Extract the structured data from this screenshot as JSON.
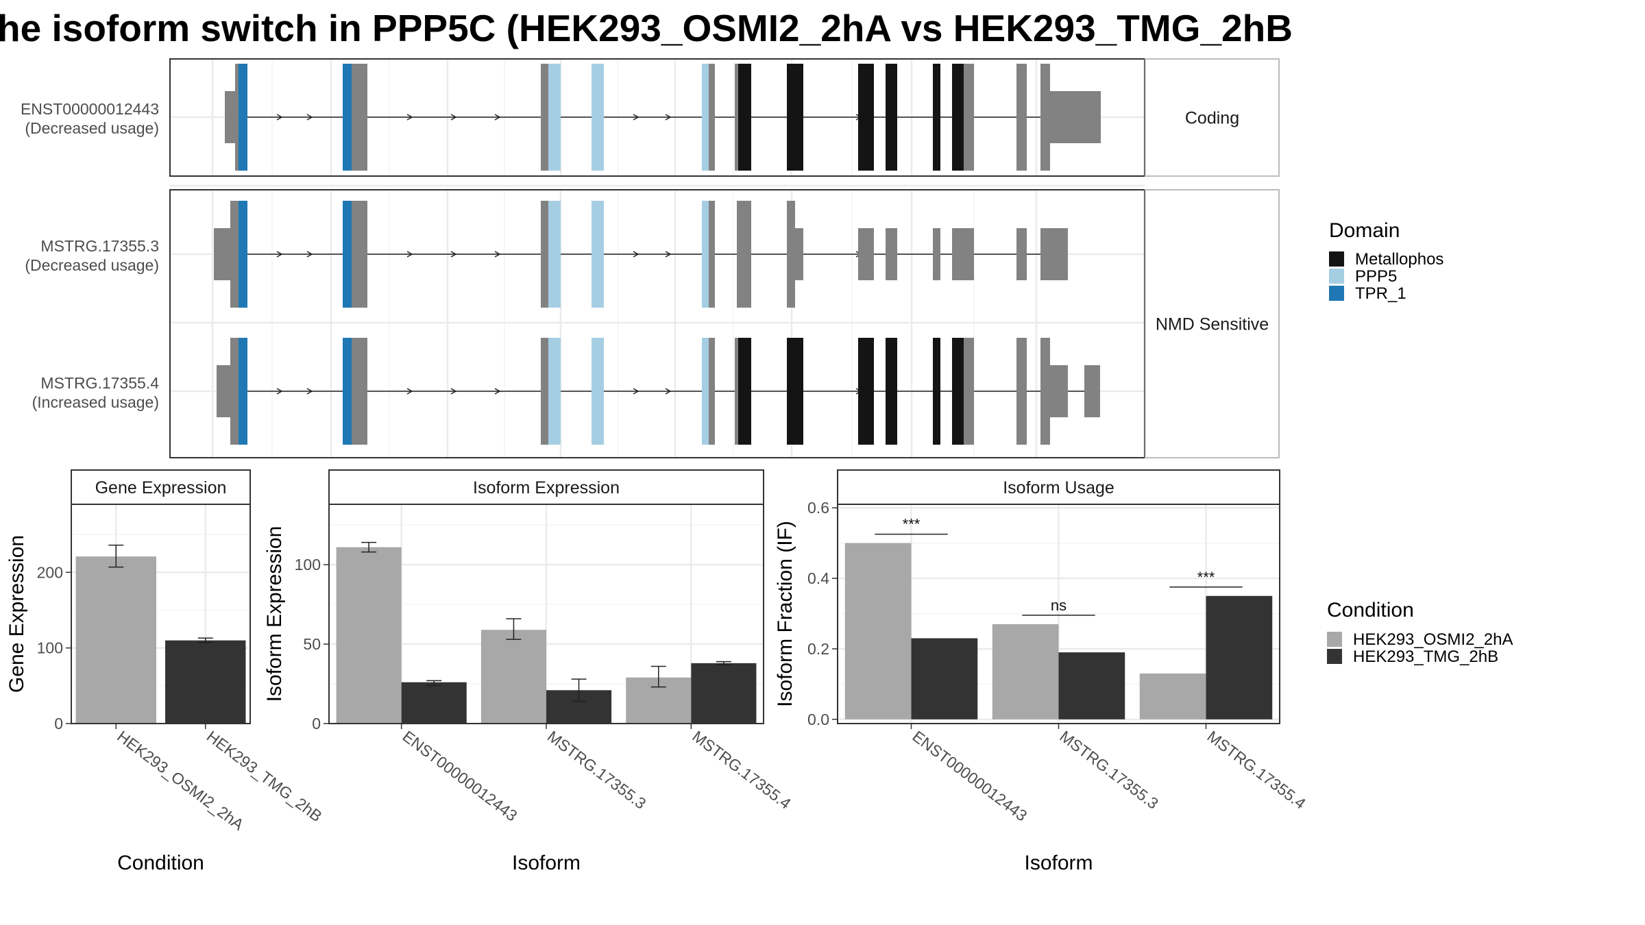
{
  "title": "he isoform switch in PPP5C (HEK293_OSMI2_2hA vs HEK293_TMG_2hB",
  "structure": {
    "isoforms": [
      {
        "id": "ENST00000012443",
        "usage": "(Decreased usage)",
        "panel": 0
      },
      {
        "id": "MSTRG.17355.3",
        "usage": "(Decreased usage)",
        "panel": 1
      },
      {
        "id": "MSTRG.17355.4",
        "usage": "(Increased usage)",
        "panel": 1
      }
    ],
    "panel_labels": [
      "Coding",
      "NMD Sensitive"
    ],
    "domain_legend": {
      "title": "Domain",
      "items": [
        {
          "label": "Metallophos",
          "color": "#141414"
        },
        {
          "label": "PPP5",
          "color": "#a6cee3"
        },
        {
          "label": "TPR_1",
          "color": "#1f78b4"
        }
      ]
    }
  },
  "condition_legend": {
    "title": "Condition",
    "items": [
      {
        "label": "HEK293_OSMI2_2hA",
        "color": "#a8a8a8"
      },
      {
        "label": "HEK293_TMG_2hB",
        "color": "#333333"
      }
    ]
  },
  "chart_data": [
    {
      "type": "bar",
      "title": "Gene Expression",
      "xlabel": "Condition",
      "ylabel": "Gene Expression",
      "categories": [
        "HEK293_OSMI2_2hA",
        "HEK293_TMG_2hB"
      ],
      "values": [
        221,
        110
      ],
      "error_low": [
        207,
        107
      ],
      "error_high": [
        236,
        113
      ],
      "ylim": [
        0,
        290
      ],
      "yticks": [
        0,
        100,
        200
      ],
      "grid": true
    },
    {
      "type": "bar",
      "title": "Isoform Expression",
      "xlabel": "Isoform",
      "ylabel": "Isoform Expression",
      "categories": [
        "ENST00000012443",
        "MSTRG.17355.3",
        "MSTRG.17355.4"
      ],
      "series": [
        {
          "name": "HEK293_OSMI2_2hA",
          "values": [
            111,
            59,
            29
          ],
          "error_low": [
            108,
            53,
            23
          ],
          "error_high": [
            114,
            66,
            36
          ]
        },
        {
          "name": "HEK293_TMG_2hB",
          "values": [
            26,
            21,
            38
          ],
          "error_low": [
            24,
            14,
            37
          ],
          "error_high": [
            27,
            28,
            39
          ]
        }
      ],
      "ylim": [
        0,
        138
      ],
      "yticks": [
        0,
        50,
        100
      ],
      "grid": true
    },
    {
      "type": "bar",
      "title": "Isoform Usage",
      "xlabel": "Isoform",
      "ylabel": "Isoform Fraction (IF)",
      "categories": [
        "ENST00000012443",
        "MSTRG.17355.3",
        "MSTRG.17355.4"
      ],
      "series": [
        {
          "name": "HEK293_OSMI2_2hA",
          "values": [
            0.5,
            0.27,
            0.13
          ]
        },
        {
          "name": "HEK293_TMG_2hB",
          "values": [
            0.23,
            0.19,
            0.35
          ]
        }
      ],
      "significance": [
        "***",
        "ns",
        "***"
      ],
      "ylim": [
        -0.012,
        0.61
      ],
      "yticks": [
        0.0,
        0.2,
        0.4,
        0.6
      ],
      "ytick_labels": [
        "0.0",
        "0.2",
        "0.4",
        "0.6"
      ],
      "grid": true
    }
  ]
}
